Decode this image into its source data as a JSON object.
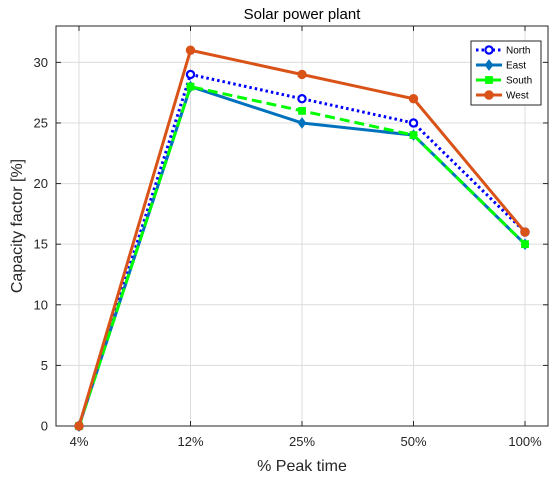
{
  "chart_data": {
    "type": "line",
    "title": "Solar power plant",
    "xlabel": "% Peak time",
    "ylabel": "Capacity factor [%]",
    "categories": [
      "4%",
      "12%",
      "25%",
      "50%",
      "100%"
    ],
    "ylim": [
      0,
      33
    ],
    "yticks": [
      0,
      5,
      10,
      15,
      20,
      25,
      30
    ],
    "grid": true,
    "legend_position": "top-right",
    "series": [
      {
        "name": "North",
        "values": [
          0,
          29,
          27,
          25,
          16
        ],
        "color": "#0000FF",
        "line": "dotted",
        "marker": "circle-open"
      },
      {
        "name": "East",
        "values": [
          0,
          28,
          25,
          24,
          15
        ],
        "color": "#0072BD",
        "line": "solid",
        "marker": "diamond"
      },
      {
        "name": "South",
        "values": [
          0,
          28,
          26,
          24,
          15
        ],
        "color": "#00FF00",
        "line": "dashed",
        "marker": "square"
      },
      {
        "name": "West",
        "values": [
          0,
          31,
          29,
          27,
          16
        ],
        "color": "#D95319",
        "line": "solid",
        "marker": "circle"
      }
    ]
  }
}
